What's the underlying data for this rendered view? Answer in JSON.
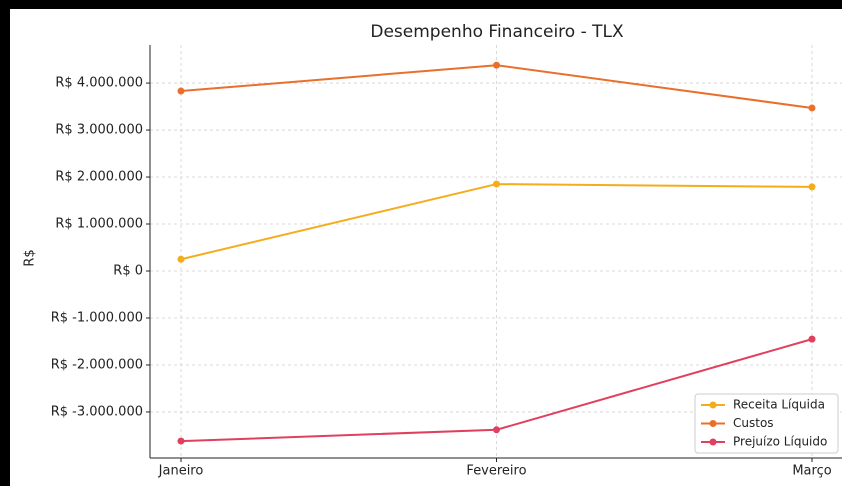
{
  "chart_data": {
    "type": "line",
    "title": "Desempenho Financeiro - TLX",
    "y_label": "R$",
    "categories": [
      "Janeiro",
      "Fevereiro",
      "Março"
    ],
    "series": [
      {
        "name": "Receita Líquida",
        "color": "#f5ac1b",
        "values": [
          250000,
          1850000,
          1790000
        ]
      },
      {
        "name": "Custos",
        "color": "#e8702a",
        "values": [
          3830000,
          4380000,
          3470000
        ]
      },
      {
        "name": "Prejuízo Líquido",
        "color": "#e0405e",
        "values": [
          -3620000,
          -3380000,
          -1450000
        ]
      }
    ],
    "ylim": [
      -3980000,
      4810000
    ],
    "yticks": [
      {
        "value": -3000000,
        "label": "R$ -3.000.000"
      },
      {
        "value": -2000000,
        "label": "R$ -2.000.000"
      },
      {
        "value": -1000000,
        "label": "R$ -1.000.000"
      },
      {
        "value": 0,
        "label": "R$ 0"
      },
      {
        "value": 1000000,
        "label": "R$ 1.000.000"
      },
      {
        "value": 2000000,
        "label": "R$ 2.000.000"
      },
      {
        "value": 3000000,
        "label": "R$ 3.000.000"
      },
      {
        "value": 4000000,
        "label": "R$ 4.000.000"
      }
    ],
    "grid": true,
    "legend": "lower right"
  }
}
